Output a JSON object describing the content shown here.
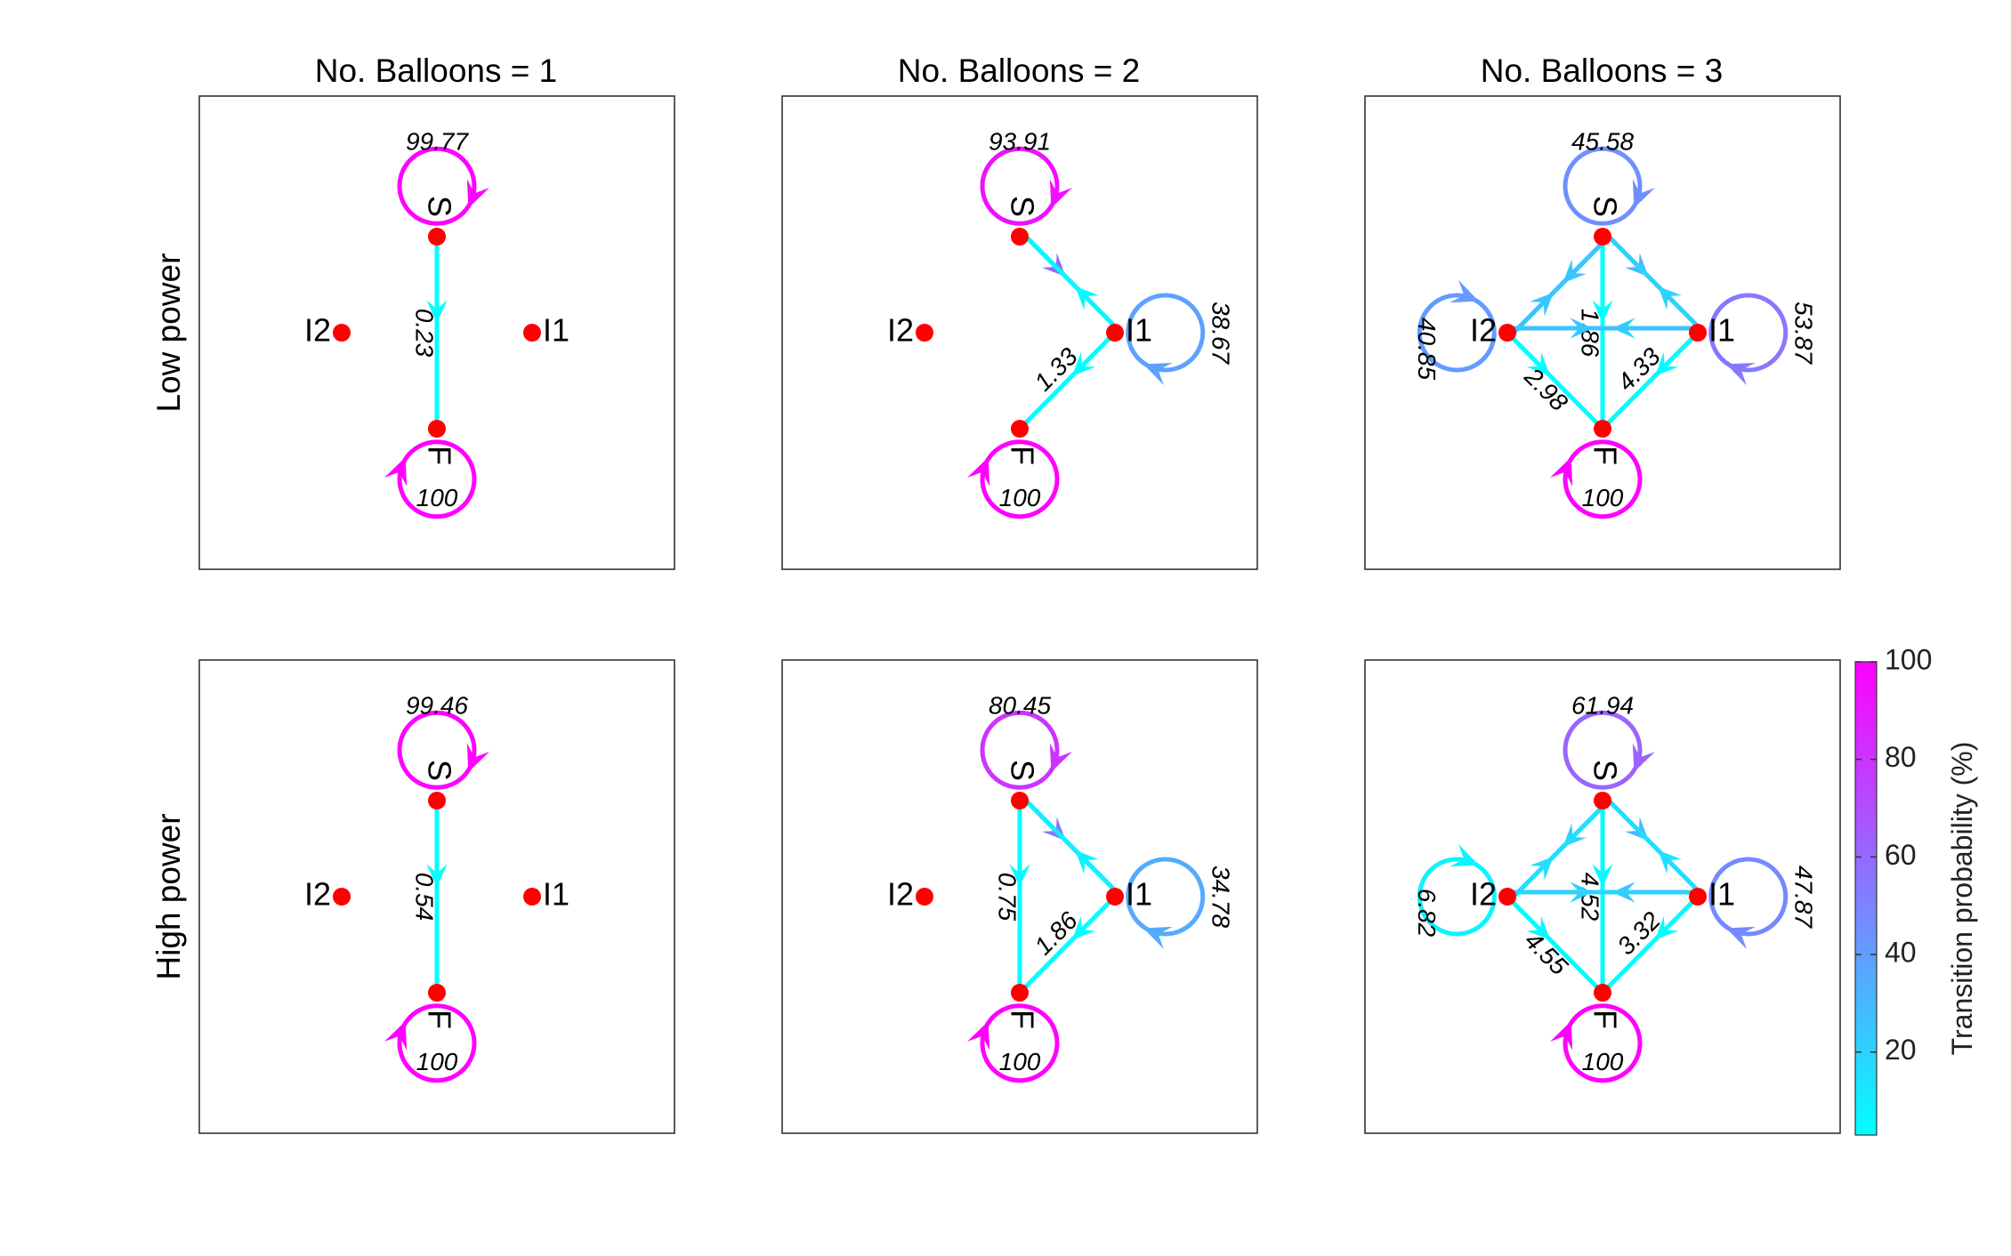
{
  "columns": [
    {
      "title": "No. Balloons = 1"
    },
    {
      "title": "No. Balloons = 2"
    },
    {
      "title": "No. Balloons = 3"
    }
  ],
  "rows": [
    {
      "label": "Low power"
    },
    {
      "label": "High power"
    }
  ],
  "node_labels": {
    "S": "S",
    "I1": "I1",
    "I2": "I2",
    "F": "F"
  },
  "node_color": "#ff0000",
  "colormap": {
    "low_color": "#00ffff",
    "high_color": "#ff00ff"
  },
  "colorbar": {
    "title": "Transition probability (%)",
    "min": 3,
    "max": 100,
    "ticks": [
      {
        "value": 20,
        "label": "20"
      },
      {
        "value": 40,
        "label": "40"
      },
      {
        "value": 60,
        "label": "60"
      },
      {
        "value": 80,
        "label": "80"
      },
      {
        "value": 100,
        "label": "100"
      }
    ]
  },
  "panels": [
    {
      "row": 0,
      "col": 0,
      "self_loops": [
        {
          "node": "S",
          "value": 99.77,
          "label": "99.77"
        },
        {
          "node": "F",
          "value": 100,
          "label": "100"
        }
      ],
      "edges": [
        {
          "from": "S",
          "to": "F",
          "value": 0.23,
          "label": "0.23"
        }
      ]
    },
    {
      "row": 0,
      "col": 1,
      "self_loops": [
        {
          "node": "S",
          "value": 93.91,
          "label": "93.91"
        },
        {
          "node": "I1",
          "value": 38.67,
          "label": "38.67"
        },
        {
          "node": "F",
          "value": 100,
          "label": "100"
        }
      ],
      "edges": [
        {
          "from": "S",
          "to": "I1",
          "value": 60
        },
        {
          "from": "I1",
          "to": "S",
          "value": 5
        },
        {
          "from": "I1",
          "to": "F",
          "value": 1.33,
          "label": "1.33"
        }
      ]
    },
    {
      "row": 0,
      "col": 2,
      "self_loops": [
        {
          "node": "S",
          "value": 45.58,
          "label": "45.58"
        },
        {
          "node": "I1",
          "value": 53.87,
          "label": "53.87"
        },
        {
          "node": "I2",
          "value": 40.85,
          "label": "40.85"
        },
        {
          "node": "F",
          "value": 100,
          "label": "100"
        }
      ],
      "edges": [
        {
          "from": "S",
          "to": "F",
          "value": 1.86,
          "label": "1.86"
        },
        {
          "from": "S",
          "to": "I1",
          "value": 30
        },
        {
          "from": "S",
          "to": "I2",
          "value": 25
        },
        {
          "from": "I1",
          "to": "S",
          "value": 20
        },
        {
          "from": "I2",
          "to": "S",
          "value": 25
        },
        {
          "from": "I1",
          "to": "I2",
          "value": 20
        },
        {
          "from": "I2",
          "to": "I1",
          "value": 25
        },
        {
          "from": "I2",
          "to": "F",
          "value": 2.98,
          "label": "2.98"
        },
        {
          "from": "I1",
          "to": "F",
          "value": 4.33,
          "label": "4.33"
        }
      ]
    },
    {
      "row": 1,
      "col": 0,
      "self_loops": [
        {
          "node": "S",
          "value": 99.46,
          "label": "99.46"
        },
        {
          "node": "F",
          "value": 100,
          "label": "100"
        }
      ],
      "edges": [
        {
          "from": "S",
          "to": "F",
          "value": 0.54,
          "label": "0.54"
        }
      ]
    },
    {
      "row": 1,
      "col": 1,
      "self_loops": [
        {
          "node": "S",
          "value": 80.45,
          "label": "80.45"
        },
        {
          "node": "I1",
          "value": 34.78,
          "label": "34.78"
        },
        {
          "node": "F",
          "value": 100,
          "label": "100"
        }
      ],
      "edges": [
        {
          "from": "S",
          "to": "F",
          "value": 0.75,
          "label": "0.75"
        },
        {
          "from": "S",
          "to": "I1",
          "value": 55
        },
        {
          "from": "I1",
          "to": "S",
          "value": 8
        },
        {
          "from": "I1",
          "to": "F",
          "value": 1.86,
          "label": "1.86"
        }
      ]
    },
    {
      "row": 1,
      "col": 2,
      "self_loops": [
        {
          "node": "S",
          "value": 61.94,
          "label": "61.94"
        },
        {
          "node": "I1",
          "value": 47.87,
          "label": "47.87"
        },
        {
          "node": "I2",
          "value": 6.82,
          "label": "6.82"
        },
        {
          "node": "F",
          "value": 100,
          "label": "100"
        }
      ],
      "edges": [
        {
          "from": "S",
          "to": "F",
          "value": 4.52,
          "label": "4.52"
        },
        {
          "from": "S",
          "to": "I1",
          "value": 30
        },
        {
          "from": "S",
          "to": "I2",
          "value": 20
        },
        {
          "from": "I1",
          "to": "S",
          "value": 15
        },
        {
          "from": "I2",
          "to": "S",
          "value": 15
        },
        {
          "from": "I1",
          "to": "I2",
          "value": 25
        },
        {
          "from": "I2",
          "to": "I1",
          "value": 20
        },
        {
          "from": "I2",
          "to": "F",
          "value": 4.55,
          "label": "4.55"
        },
        {
          "from": "I1",
          "to": "F",
          "value": 3.32,
          "label": "3.32"
        }
      ]
    }
  ]
}
